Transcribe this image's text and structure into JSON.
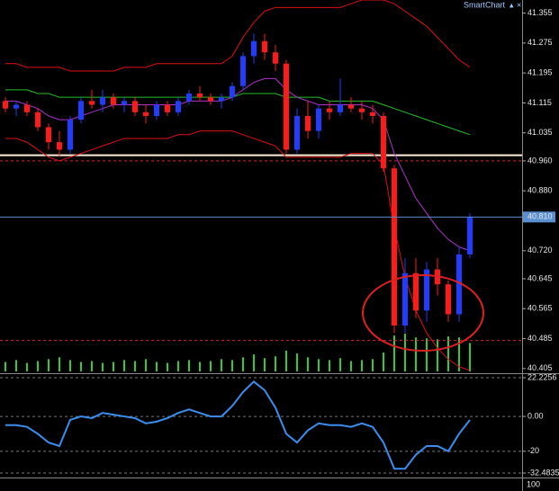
{
  "app_title": "SmartChart",
  "lower_pane_tick": "100",
  "chart_data": [
    {
      "type": "candlestick",
      "open": [
        41.12,
        41.1,
        41.11,
        41.09,
        41.05,
        41.01,
        40.99,
        41.07,
        41.12,
        41.11,
        41.13,
        41.11,
        41.12,
        41.09,
        41.08,
        41.11,
        41.09,
        41.12,
        41.14,
        41.13,
        41.12,
        41.13,
        41.16,
        41.24,
        41.28,
        41.25,
        41.22,
        40.99,
        41.08,
        41.04,
        41.1,
        41.09,
        41.11,
        41.1,
        41.09,
        41.08,
        40.94,
        40.52,
        40.66,
        40.56,
        40.67,
        40.63,
        40.55,
        40.71
      ],
      "high": [
        41.13,
        41.12,
        41.12,
        41.1,
        41.06,
        41.04,
        41.08,
        41.13,
        41.15,
        41.15,
        41.14,
        41.13,
        41.13,
        41.11,
        41.12,
        41.12,
        41.13,
        41.15,
        41.16,
        41.14,
        41.14,
        41.17,
        41.25,
        41.3,
        41.3,
        41.27,
        41.23,
        41.1,
        41.12,
        41.11,
        41.12,
        41.18,
        41.13,
        41.12,
        41.11,
        41.09,
        40.95,
        40.7,
        40.7,
        40.69,
        40.7,
        40.64,
        40.73,
        40.82
      ],
      "low": [
        41.09,
        41.08,
        41.08,
        41.04,
        40.99,
        40.97,
        40.98,
        41.06,
        41.1,
        41.09,
        41.1,
        41.09,
        41.08,
        41.06,
        41.07,
        41.08,
        41.08,
        41.11,
        41.12,
        41.11,
        41.1,
        41.12,
        41.15,
        41.22,
        41.23,
        41.2,
        40.98,
        40.98,
        41.02,
        41.02,
        41.07,
        41.08,
        41.09,
        41.07,
        41.06,
        40.93,
        40.5,
        40.5,
        40.54,
        40.53,
        40.6,
        40.53,
        40.53,
        40.7
      ],
      "close": [
        41.1,
        41.11,
        41.09,
        41.05,
        41.01,
        40.99,
        41.07,
        41.12,
        41.11,
        41.13,
        41.11,
        41.12,
        41.09,
        41.08,
        41.11,
        41.09,
        41.12,
        41.14,
        41.13,
        41.12,
        41.13,
        41.16,
        41.24,
        41.28,
        41.25,
        41.22,
        40.99,
        41.08,
        41.04,
        41.1,
        41.09,
        41.11,
        41.1,
        41.09,
        41.08,
        40.94,
        40.52,
        40.66,
        40.56,
        40.67,
        40.63,
        40.55,
        40.71,
        40.81
      ],
      "up_color": "#1f3cff",
      "down_color": "#ff1a1a",
      "volume": [
        10,
        12,
        9,
        11,
        13,
        15,
        12,
        10,
        11,
        9,
        10,
        12,
        11,
        13,
        10,
        9,
        11,
        12,
        10,
        11,
        13,
        12,
        15,
        18,
        14,
        16,
        22,
        19,
        15,
        13,
        12,
        14,
        11,
        12,
        13,
        20,
        38,
        40,
        36,
        35,
        34,
        37,
        36,
        30
      ],
      "volume_color": "#33cc33",
      "overlays": [
        {
          "color": "#e01010",
          "values": [
            41.22,
            41.22,
            41.21,
            41.21,
            41.21,
            41.21,
            41.2,
            41.2,
            41.2,
            41.2,
            41.2,
            41.21,
            41.21,
            41.21,
            41.22,
            41.22,
            41.22,
            41.22,
            41.22,
            41.22,
            41.22,
            41.24,
            41.29,
            41.33,
            41.36,
            41.37,
            41.37,
            41.37,
            41.37,
            41.37,
            41.37,
            41.37,
            41.38,
            41.39,
            41.39,
            41.39,
            41.38,
            41.36,
            41.34,
            41.32,
            41.29,
            41.26,
            41.23,
            41.21
          ]
        },
        {
          "color": "#e01010",
          "values": [
            41.02,
            41.02,
            41.01,
            40.99,
            40.97,
            40.96,
            40.97,
            40.98,
            40.99,
            41.0,
            41.01,
            41.02,
            41.02,
            41.02,
            41.02,
            41.02,
            41.03,
            41.03,
            41.04,
            41.04,
            41.04,
            41.04,
            41.03,
            41.02,
            41.01,
            41.0,
            40.97,
            40.97,
            40.97,
            40.97,
            40.97,
            40.97,
            40.98,
            40.98,
            40.98,
            40.95,
            40.78,
            40.65,
            40.56,
            40.5,
            40.46,
            40.43,
            40.41,
            40.4
          ]
        },
        {
          "color": "#22c022",
          "values": [
            41.15,
            41.15,
            41.15,
            41.14,
            41.14,
            41.13,
            41.13,
            41.13,
            41.13,
            41.13,
            41.13,
            41.13,
            41.13,
            41.13,
            41.13,
            41.13,
            41.13,
            41.13,
            41.13,
            41.13,
            41.13,
            41.13,
            41.14,
            41.14,
            41.14,
            41.14,
            41.13,
            41.13,
            41.13,
            41.13,
            41.12,
            41.12,
            41.12,
            41.12,
            41.12,
            41.11,
            41.1,
            41.09,
            41.08,
            41.07,
            41.06,
            41.05,
            41.04,
            41.03
          ]
        },
        {
          "color": "#b030d0",
          "values": [
            41.12,
            41.12,
            41.11,
            41.1,
            41.08,
            41.07,
            41.07,
            41.08,
            41.09,
            41.1,
            41.11,
            41.11,
            41.11,
            41.11,
            41.11,
            41.11,
            41.11,
            41.12,
            41.12,
            41.12,
            41.12,
            41.13,
            41.15,
            41.17,
            41.18,
            41.18,
            41.15,
            41.13,
            41.12,
            41.11,
            41.11,
            41.11,
            41.11,
            41.11,
            41.1,
            41.07,
            40.98,
            40.92,
            40.86,
            40.82,
            40.78,
            40.75,
            40.73,
            40.72
          ]
        }
      ],
      "levels": [
        {
          "value": 40.975,
          "color": "#fff0d8",
          "dashed": false
        },
        {
          "value": 40.96,
          "color": "#e02020",
          "dashed": true
        },
        {
          "value": 40.48,
          "color": "#e02020",
          "dashed": true
        }
      ],
      "current_price": {
        "value": 40.81,
        "label": "40.810"
      },
      "current_color": "#5a8fd0",
      "ylim": [
        40.395,
        41.39
      ],
      "yticks": [
        41.355,
        41.275,
        41.195,
        41.115,
        41.035,
        {
          "value": 40.96,
          "label": "40.960"
        },
        {
          "value": 40.88,
          "label": "40.880"
        },
        {
          "value": 40.72,
          "label": "40.720"
        },
        40.645,
        40.565,
        40.485,
        40.405
      ]
    },
    {
      "type": "line",
      "values": [
        -5,
        -5,
        -6,
        -10,
        -15,
        -17,
        -2,
        0,
        -1,
        2,
        1,
        0,
        -1,
        -4,
        -3,
        -1,
        2,
        4,
        2,
        0,
        0,
        6,
        14,
        20,
        15,
        5,
        -10,
        -15,
        -8,
        -4,
        -5,
        -5,
        -6,
        -4,
        -6,
        -15,
        -30,
        -30,
        -22,
        -17,
        -17,
        -20,
        -10,
        -2
      ],
      "color": "#3a8ef0",
      "ylim": [
        -32.4835,
        22.2256
      ],
      "yticks": [
        22.2256,
        {
          "value": 0,
          "label": "0.00"
        },
        -20,
        -32.4835
      ]
    }
  ]
}
